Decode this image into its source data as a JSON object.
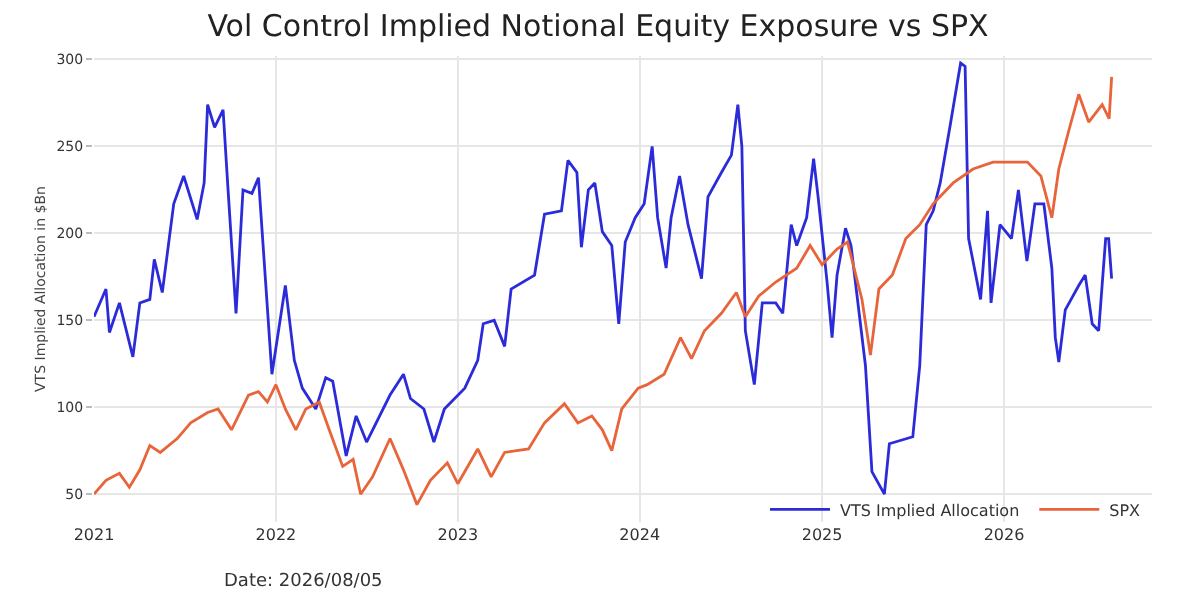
{
  "chart_data": {
    "type": "line",
    "title": "Vol Control Implied Notional Equity Exposure vs SPX",
    "ylabel": "VTS Implied Allocation in $Bn",
    "annotations": [
      "Date: 2026/08/05"
    ],
    "xlim": [
      "2021-01-01",
      "2026-10-25"
    ],
    "xticks": [
      "2021",
      "2022",
      "2023",
      "2024",
      "2025",
      "2026"
    ],
    "ylim": [
      34,
      302
    ],
    "yticks": [
      50,
      100,
      150,
      200,
      250,
      300
    ],
    "grid": true,
    "legend": "bottom right",
    "marker": "none",
    "line_style": "solid",
    "series": [
      {
        "name": "VTS Implied Allocation",
        "color": "#2b2bd9",
        "x": [
          "2021-01-01",
          "2021-01-25",
          "2021-02-01",
          "2021-02-21",
          "2021-03-20",
          "2021-04-03",
          "2021-04-23",
          "2021-05-02",
          "2021-05-18",
          "2021-06-10",
          "2021-06-30",
          "2021-07-27",
          "2021-08-10",
          "2021-08-17",
          "2021-08-31",
          "2021-09-17",
          "2021-09-27",
          "2021-10-13",
          "2021-10-27",
          "2021-11-14",
          "2021-11-27",
          "2021-12-24",
          "2022-01-20",
          "2022-02-07",
          "2022-02-23",
          "2022-03-22",
          "2022-04-11",
          "2022-04-25",
          "2022-05-22",
          "2022-06-11",
          "2022-07-02",
          "2022-08-18",
          "2022-09-14",
          "2022-09-28",
          "2022-10-25",
          "2022-11-14",
          "2022-12-05",
          "2023-01-15",
          "2023-02-10",
          "2023-02-21",
          "2023-03-15",
          "2023-04-05",
          "2023-04-18",
          "2023-06-04",
          "2023-06-24",
          "2023-07-28",
          "2023-08-10",
          "2023-08-28",
          "2023-09-06",
          "2023-09-20",
          "2023-10-03",
          "2023-10-18",
          "2023-11-06",
          "2023-11-20",
          "2023-12-03",
          "2023-12-23",
          "2024-01-10",
          "2024-01-26",
          "2024-02-06",
          "2024-02-23",
          "2024-03-04",
          "2024-03-21",
          "2024-04-07",
          "2024-05-04",
          "2024-05-17",
          "2024-06-13",
          "2024-07-03",
          "2024-07-16",
          "2024-07-24",
          "2024-07-31",
          "2024-08-18",
          "2024-09-03",
          "2024-09-30",
          "2024-10-14",
          "2024-10-31",
          "2024-11-11",
          "2024-12-01",
          "2024-12-15",
          "2024-12-24",
          "2025-01-11",
          "2025-01-21",
          "2025-01-31",
          "2025-02-17",
          "2025-02-28",
          "2025-03-29",
          "2025-04-11",
          "2025-05-06",
          "2025-05-16",
          "2025-07-02",
          "2025-07-16",
          "2025-07-29",
          "2025-08-12",
          "2025-08-26",
          "2025-09-15",
          "2025-09-29",
          "2025-10-06",
          "2025-10-15",
          "2025-10-22",
          "2025-11-15",
          "2025-11-29",
          "2025-12-06",
          "2025-12-24",
          "2026-01-16",
          "2026-01-30",
          "2026-02-16",
          "2026-03-04",
          "2026-03-22",
          "2026-04-07",
          "2026-04-14",
          "2026-04-21",
          "2026-05-04",
          "2026-05-31",
          "2026-06-13",
          "2026-06-27",
          "2026-07-10",
          "2026-07-24",
          "2026-07-30",
          "2026-08-05"
        ],
        "values": [
          152,
          168,
          143,
          160,
          129,
          160,
          162,
          185,
          166,
          217,
          233,
          208,
          229,
          274,
          261,
          271,
          225,
          154,
          225,
          223,
          232,
          119,
          170,
          127,
          111,
          99,
          117,
          115,
          72,
          95,
          80,
          107,
          119,
          105,
          99,
          80,
          99,
          111,
          127,
          148,
          150,
          135,
          168,
          176,
          211,
          213,
          242,
          235,
          192,
          225,
          229,
          201,
          193,
          148,
          195,
          209,
          217,
          250,
          209,
          180,
          209,
          233,
          205,
          174,
          221,
          235,
          245,
          274,
          250,
          144,
          113,
          160,
          160,
          154,
          205,
          193,
          209,
          243,
          221,
          172,
          140,
          176,
          203,
          193,
          124,
          63,
          50,
          79,
          83,
          124,
          205,
          213,
          229,
          262,
          286,
          298,
          296,
          197,
          162,
          213,
          160,
          205,
          197,
          225,
          184,
          217,
          217,
          180,
          140,
          126,
          156,
          170,
          176,
          148,
          144,
          197,
          197,
          174
        ]
      },
      {
        "name": "SPX",
        "color": "#e8643a",
        "x": [
          "2021-01-01",
          "2021-01-25",
          "2021-02-21",
          "2021-03-13",
          "2021-04-03",
          "2021-04-23",
          "2021-05-14",
          "2021-06-17",
          "2021-07-14",
          "2021-08-17",
          "2021-09-07",
          "2021-10-04",
          "2021-11-07",
          "2021-11-27",
          "2021-12-15",
          "2022-01-01",
          "2022-01-20",
          "2022-02-10",
          "2022-03-02",
          "2022-03-29",
          "2022-04-18",
          "2022-05-15",
          "2022-06-05",
          "2022-06-20",
          "2022-07-14",
          "2022-08-18",
          "2022-09-14",
          "2022-10-11",
          "2022-11-07",
          "2022-12-11",
          "2023-01-01",
          "2023-02-10",
          "2023-03-09",
          "2023-04-05",
          "2023-05-23",
          "2023-06-24",
          "2023-08-03",
          "2023-08-30",
          "2023-09-27",
          "2023-10-18",
          "2023-11-06",
          "2023-11-26",
          "2023-12-29",
          "2024-01-16",
          "2024-02-19",
          "2024-03-23",
          "2024-04-14",
          "2024-05-10",
          "2024-06-13",
          "2024-07-13",
          "2024-07-31",
          "2024-08-27",
          "2024-09-30",
          "2024-11-11",
          "2024-12-08",
          "2025-01-01",
          "2025-01-31",
          "2025-02-21",
          "2025-03-22",
          "2025-04-08",
          "2025-04-25",
          "2025-05-22",
          "2025-06-18",
          "2025-07-16",
          "2025-08-12",
          "2025-09-21",
          "2025-10-31",
          "2025-12-10",
          "2026-01-21",
          "2026-02-17",
          "2026-03-16",
          "2026-04-07",
          "2026-04-21",
          "2026-05-10",
          "2026-05-31",
          "2026-06-20",
          "2026-07-17",
          "2026-07-31",
          "2026-08-05"
        ],
        "values": [
          50,
          58,
          62,
          54,
          64,
          78,
          74,
          82,
          91,
          97,
          99,
          87,
          107,
          109,
          103,
          113,
          99,
          87,
          99,
          103,
          87,
          66,
          70,
          50,
          60,
          82,
          64,
          44,
          58,
          68,
          56,
          76,
          60,
          74,
          76,
          91,
          102,
          91,
          95,
          87,
          75,
          99,
          111,
          113,
          119,
          140,
          128,
          144,
          154,
          166,
          152,
          164,
          172,
          180,
          193,
          182,
          191,
          195,
          162,
          130,
          168,
          176,
          197,
          205,
          217,
          229,
          237,
          241,
          241,
          241,
          233,
          209,
          237,
          258,
          280,
          264,
          274,
          266,
          290
        ]
      }
    ]
  }
}
